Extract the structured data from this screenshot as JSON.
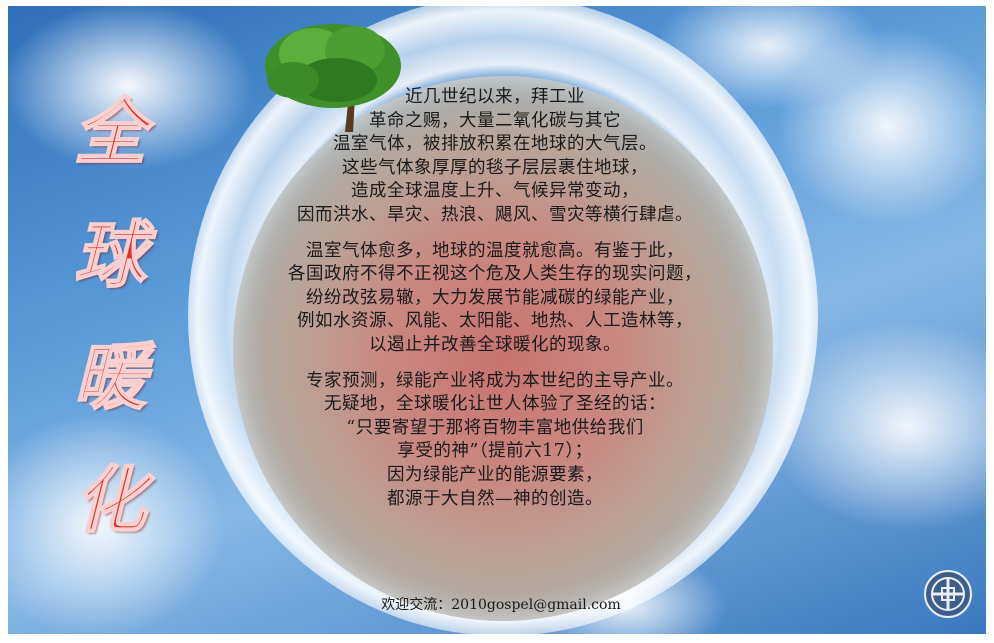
{
  "title_chars": [
    "全",
    "球",
    "暖",
    "化"
  ],
  "paragraphs": [
    {
      "lines": [
        "近几世纪以来，拜工业",
        "革命之赐，大量二氧化碳与其它",
        "温室气体，被排放积累在地球的大气层。",
        "这些气体象厚厚的毯子层层裹住地球，",
        "造成全球温度上升、气候异常变动，",
        "因而洪水、旱灾、热浪、飓风、雪灾等横行肆虐。"
      ]
    },
    {
      "lines": [
        "温室气体愈多，地球的温度就愈高。有鉴于此，",
        "各国政府不得不正视这个危及人类生存的现实问题，",
        "纷纷改弦易辙，大力发展节能减碳的绿能产业，",
        "例如水资源、风能、太阳能、地热、人工造林等，",
        "以遏止并改善全球暖化的现象。"
      ]
    },
    {
      "lines": [
        "专家预测，绿能产业将成为本世纪的主导产业。",
        "无疑地，全球暖化让世人体验了圣经的话：",
        "“只要寄望于那将百物丰富地供给我们",
        "享受的神”（提前六17）；",
        "因为绿能产业的能源要素，",
        "都源于大自然—神的创造。"
      ]
    }
  ],
  "contact": {
    "label": "欢迎交流：",
    "email": "2010gospel@gmail.com"
  },
  "icons": {
    "tree": "tree-icon",
    "logo": "logo-icon"
  },
  "colors": {
    "title": "#e0332f",
    "sky": "#4f8fd0",
    "globe_center": "#c9736f"
  }
}
